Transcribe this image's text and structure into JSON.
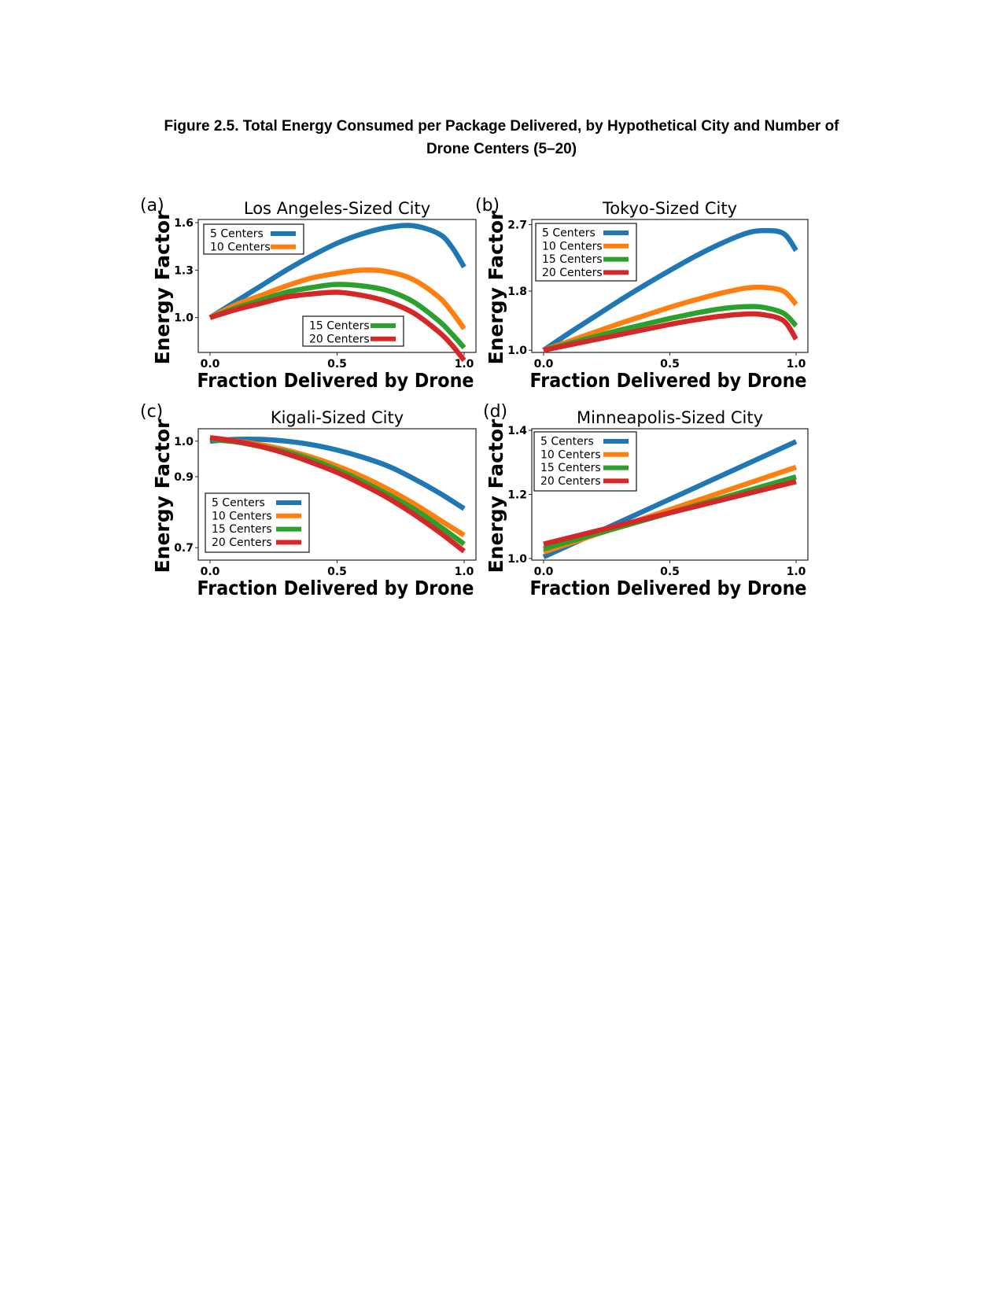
{
  "figure": {
    "title_line1": "Figure 2.5. Total Energy Consumed per Package Delivered, by Hypothetical City and Number of",
    "title_line2": "Drone Centers (5–20)"
  },
  "colors": {
    "5 Centers": "#1f77b4",
    "10 Centers": "#ff7f0e",
    "15 Centers": "#2ca02c",
    "20 Centers": "#d62728"
  },
  "chart_data": [
    {
      "panel": "(a)",
      "type": "line",
      "title": "Los Angeles-Sized City",
      "xlabel": "Fraction Delivered by Drone",
      "ylabel": "Energy Factor",
      "xlim": [
        0,
        1
      ],
      "ylim": [
        0.78,
        1.62
      ],
      "xticks": [
        "0.0",
        "0.5",
        "1.0"
      ],
      "yticks": [
        "1.0",
        "1.3",
        "1.6"
      ],
      "legend": "split: 5 & 10 Centers top-left, 15 & 20 Centers lower-center",
      "x": [
        0,
        0.1,
        0.2,
        0.3,
        0.4,
        0.5,
        0.6,
        0.7,
        0.8,
        0.9,
        0.95,
        1.0
      ],
      "series": [
        {
          "name": "5 Centers",
          "values": [
            1.0,
            1.1,
            1.2,
            1.3,
            1.39,
            1.47,
            1.53,
            1.57,
            1.58,
            1.53,
            1.45,
            1.32
          ]
        },
        {
          "name": "10 Centers",
          "values": [
            1.0,
            1.08,
            1.14,
            1.2,
            1.25,
            1.28,
            1.3,
            1.29,
            1.24,
            1.13,
            1.04,
            0.93
          ]
        },
        {
          "name": "15 Centers",
          "values": [
            1.0,
            1.06,
            1.11,
            1.16,
            1.19,
            1.21,
            1.2,
            1.17,
            1.1,
            0.98,
            0.9,
            0.81
          ]
        },
        {
          "name": "20 Centers",
          "values": [
            1.0,
            1.05,
            1.09,
            1.13,
            1.15,
            1.16,
            1.14,
            1.1,
            1.03,
            0.91,
            0.83,
            0.73
          ]
        }
      ]
    },
    {
      "panel": "(b)",
      "type": "line",
      "title": "Tokyo-Sized City",
      "xlabel": "Fraction Delivered by Drone",
      "ylabel": "Energy Factor",
      "xlim": [
        0,
        1
      ],
      "ylim": [
        0.97,
        2.77
      ],
      "xticks": [
        "0.0",
        "0.5",
        "1.0"
      ],
      "yticks": [
        "1.0",
        "1.8",
        "2.7"
      ],
      "legend": "top-left",
      "x": [
        0,
        0.1,
        0.2,
        0.3,
        0.4,
        0.5,
        0.6,
        0.7,
        0.8,
        0.87,
        0.95,
        1.0
      ],
      "series": [
        {
          "name": "5 Centers",
          "values": [
            1.0,
            1.23,
            1.45,
            1.67,
            1.88,
            2.08,
            2.27,
            2.44,
            2.58,
            2.62,
            2.58,
            2.35
          ]
        },
        {
          "name": "10 Centers",
          "values": [
            1.0,
            1.12,
            1.24,
            1.36,
            1.47,
            1.58,
            1.68,
            1.77,
            1.84,
            1.85,
            1.8,
            1.62
          ]
        },
        {
          "name": "15 Centers",
          "values": [
            1.0,
            1.09,
            1.18,
            1.27,
            1.35,
            1.43,
            1.5,
            1.56,
            1.59,
            1.58,
            1.5,
            1.33
          ]
        },
        {
          "name": "20 Centers",
          "values": [
            1.0,
            1.07,
            1.14,
            1.21,
            1.28,
            1.35,
            1.41,
            1.46,
            1.49,
            1.48,
            1.4,
            1.15
          ]
        }
      ]
    },
    {
      "panel": "(c)",
      "type": "line",
      "title": "Kigali-Sized City",
      "xlabel": "Fraction Delivered by Drone",
      "ylabel": "Energy Factor",
      "xlim": [
        0,
        1
      ],
      "ylim": [
        0.665,
        1.035
      ],
      "xticks": [
        "0.0",
        "0.5",
        "1.0"
      ],
      "yticks": [
        "0.7",
        "0.9",
        "1.0"
      ],
      "legend": "center-left",
      "x": [
        0,
        0.1,
        0.2,
        0.3,
        0.4,
        0.5,
        0.6,
        0.7,
        0.8,
        0.9,
        1.0
      ],
      "series": [
        {
          "name": "5 Centers",
          "values": [
            1.0,
            1.005,
            1.005,
            1.0,
            0.99,
            0.975,
            0.955,
            0.93,
            0.895,
            0.855,
            0.81
          ]
        },
        {
          "name": "10 Centers",
          "values": [
            1.005,
            1.0,
            0.99,
            0.975,
            0.955,
            0.93,
            0.9,
            0.865,
            0.825,
            0.78,
            0.735
          ]
        },
        {
          "name": "15 Centers",
          "values": [
            1.005,
            0.998,
            0.985,
            0.97,
            0.948,
            0.92,
            0.887,
            0.85,
            0.81,
            0.762,
            0.71
          ]
        },
        {
          "name": "20 Centers",
          "values": [
            1.01,
            1.0,
            0.985,
            0.965,
            0.94,
            0.912,
            0.878,
            0.84,
            0.795,
            0.745,
            0.69
          ]
        }
      ]
    },
    {
      "panel": "(d)",
      "type": "line",
      "title": "Minneapolis-Sized City",
      "xlabel": "Fraction Delivered by Drone",
      "ylabel": "Energy Factor",
      "xlim": [
        0,
        1
      ],
      "ylim": [
        0.995,
        1.405
      ],
      "xticks": [
        "0.0",
        "0.5",
        "1.0"
      ],
      "yticks": [
        "1.0",
        "1.2",
        "1.4"
      ],
      "legend": "top-left",
      "x": [
        0,
        1.0
      ],
      "series": [
        {
          "name": "5 Centers",
          "values": [
            1.005,
            1.365
          ]
        },
        {
          "name": "10 Centers",
          "values": [
            1.02,
            1.285
          ]
        },
        {
          "name": "15 Centers",
          "values": [
            1.03,
            1.255
          ]
        },
        {
          "name": "20 Centers",
          "values": [
            1.045,
            1.24
          ]
        }
      ]
    }
  ]
}
